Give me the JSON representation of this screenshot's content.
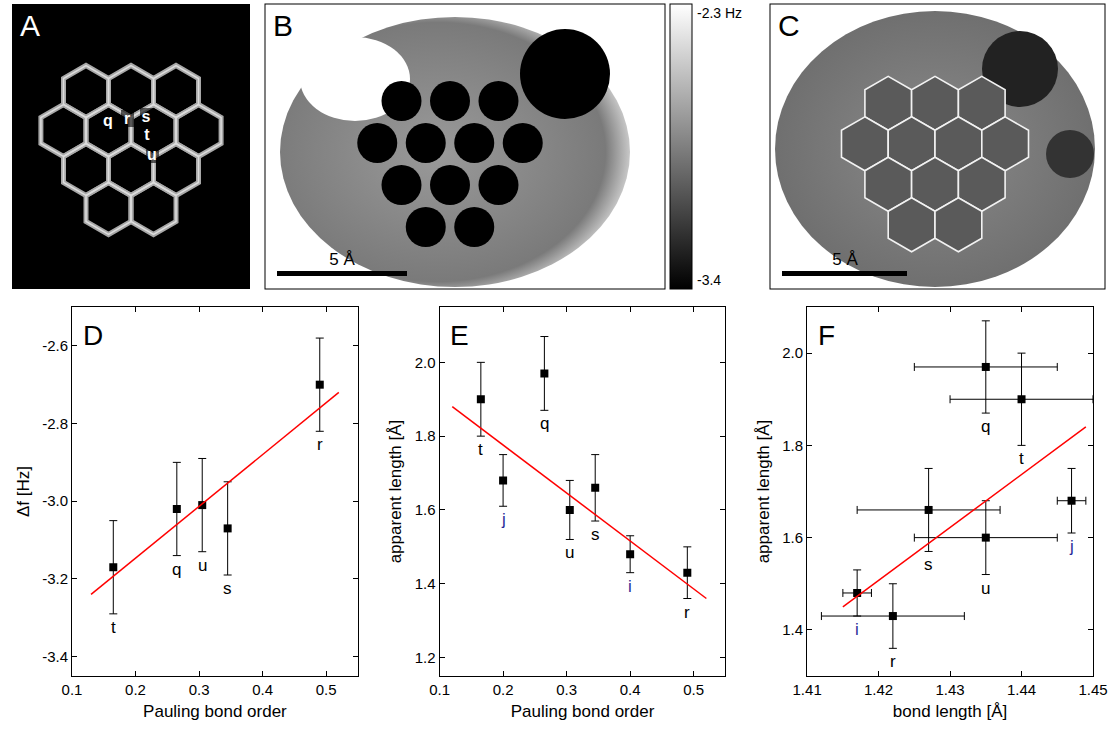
{
  "image_panels": [
    {
      "letter": "A",
      "atom_labels": [
        "q",
        "r",
        "s",
        "t",
        "u"
      ]
    },
    {
      "letter": "B",
      "colorbar": {
        "range": [
          -3.4,
          -2.3
        ],
        "ticks": [
          {
            "value": -2.3,
            "label": "-2.3 Hz"
          },
          {
            "value": -3.4,
            "label": "-3.4"
          }
        ]
      },
      "scale_bar": "5 Å"
    },
    {
      "letter": "C",
      "scale_bar": "5 Å"
    }
  ],
  "chart_data": [
    {
      "letter": "D",
      "type": "scatter",
      "x_label": "Pauling bond order",
      "y_label": "Δf [Hz]",
      "xlim": [
        0.1,
        0.55
      ],
      "xticks": [
        0.1,
        0.2,
        0.3,
        0.4,
        0.5
      ],
      "ylim": [
        -3.45,
        -2.5
      ],
      "yticks": [
        -3.4,
        -3.2,
        {
          "value": -3.0,
          "label": "-3.0"
        },
        -2.8,
        -2.6
      ],
      "series": [
        {
          "type": "scatter",
          "marker": "square",
          "color": "#000000",
          "x": [
            0.165,
            0.265,
            0.305,
            0.345,
            0.49
          ],
          "values": [
            -3.17,
            -3.02,
            -3.01,
            -3.07,
            -2.7
          ],
          "y_error": [
            0.12,
            0.12,
            0.12,
            0.12,
            0.12
          ],
          "labels": [
            "t",
            "q",
            "u",
            "s",
            "r"
          ],
          "label_colors": [
            "#000000",
            "#000000",
            "#000000",
            "#000000",
            "#000000"
          ]
        },
        {
          "type": "line",
          "color": "#ff0000",
          "x": [
            0.13,
            0.52
          ],
          "values": [
            -3.24,
            -2.72
          ]
        }
      ]
    },
    {
      "letter": "E",
      "type": "scatter",
      "x_label": "Pauling bond order",
      "y_label": "apparent length [Å]",
      "xlim": [
        0.1,
        0.55
      ],
      "xticks": [
        0.1,
        0.2,
        0.3,
        0.4,
        0.5
      ],
      "ylim": [
        1.15,
        2.15
      ],
      "yticks": [
        1.2,
        1.4,
        1.6,
        1.8,
        {
          "value": 2.0,
          "label": "2.0"
        }
      ],
      "series": [
        {
          "type": "scatter",
          "marker": "square",
          "color": "#000000",
          "x": [
            0.165,
            0.2,
            0.265,
            0.305,
            0.345,
            0.4,
            0.49
          ],
          "values": [
            1.9,
            1.68,
            1.97,
            1.6,
            1.66,
            1.48,
            1.43
          ],
          "y_error": [
            0.1,
            0.07,
            0.1,
            0.08,
            0.09,
            0.05,
            0.07
          ],
          "labels": [
            "t",
            "j",
            "q",
            "u",
            "s",
            "i",
            "r"
          ],
          "label_colors": [
            "#000000",
            "#2a2a9a",
            "#000000",
            "#000000",
            "#000000",
            "#2a2a9a",
            "#000000"
          ]
        },
        {
          "type": "line",
          "color": "#ff0000",
          "x": [
            0.12,
            0.52
          ],
          "values": [
            1.88,
            1.36
          ]
        }
      ]
    },
    {
      "letter": "F",
      "type": "scatter",
      "x_label": "bond length [Å]",
      "y_label": "apparent length [Å]",
      "xlim": [
        1.41,
        1.45
      ],
      "xticks": [
        1.41,
        1.42,
        1.43,
        1.44,
        1.45
      ],
      "ylim": [
        1.3,
        2.1
      ],
      "yticks": [
        1.4,
        1.6,
        1.8,
        {
          "value": 2.0,
          "label": "2.0"
        }
      ],
      "series": [
        {
          "type": "scatter",
          "marker": "square",
          "color": "#000000",
          "x": [
            1.417,
            1.422,
            1.427,
            1.435,
            1.44,
            1.435,
            1.447
          ],
          "values": [
            1.48,
            1.43,
            1.66,
            1.97,
            1.9,
            1.6,
            1.68
          ],
          "y_error": [
            0.05,
            0.07,
            0.09,
            0.1,
            0.1,
            0.08,
            0.07
          ],
          "x_error": [
            0.002,
            0.01,
            0.01,
            0.01,
            0.01,
            0.01,
            0.002
          ],
          "labels": [
            "i",
            "r",
            "s",
            "q",
            "t",
            "u",
            "j"
          ],
          "label_colors": [
            "#2a2a9a",
            "#000000",
            "#000000",
            "#000000",
            "#000000",
            "#000000",
            "#2a2a9a"
          ]
        },
        {
          "type": "line",
          "color": "#ff0000",
          "x": [
            1.415,
            1.449
          ],
          "values": [
            1.45,
            1.84
          ]
        }
      ]
    }
  ]
}
